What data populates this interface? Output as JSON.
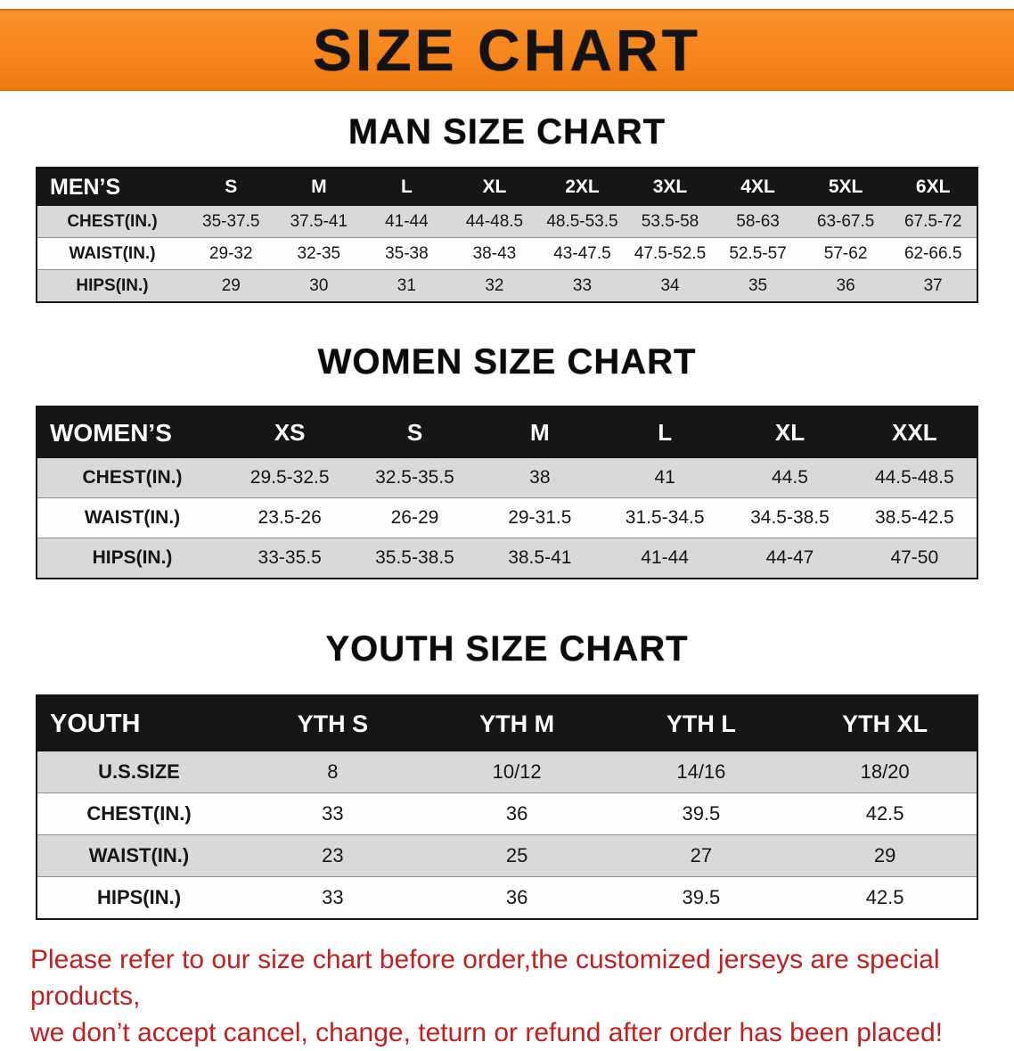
{
  "banner": {
    "title": "SIZE CHART"
  },
  "sections": [
    {
      "heading": "MAN SIZE CHART",
      "header": [
        "MEN’S",
        "S",
        "M",
        "L",
        "XL",
        "2XL",
        "3XL",
        "4XL",
        "5XL",
        "6XL"
      ],
      "rows": [
        [
          "CHEST(IN.)",
          "35-37.5",
          "37.5-41",
          "41-44",
          "44-48.5",
          "48.5-53.5",
          "53.5-58",
          "58-63",
          "63-67.5",
          "67.5-72"
        ],
        [
          "WAIST(IN.)",
          "29-32",
          "32-35",
          "35-38",
          "38-43",
          "43-47.5",
          "47.5-52.5",
          "52.5-57",
          "57-62",
          "62-66.5"
        ],
        [
          "HIPS(IN.)",
          "29",
          "30",
          "31",
          "32",
          "33",
          "34",
          "35",
          "36",
          "37"
        ]
      ]
    },
    {
      "heading": "WOMEN SIZE CHART",
      "header": [
        "WOMEN’S",
        "XS",
        "S",
        "M",
        "L",
        "XL",
        "XXL"
      ],
      "rows": [
        [
          "CHEST(IN.)",
          "29.5-32.5",
          "32.5-35.5",
          "38",
          "41",
          "44.5",
          "44.5-48.5"
        ],
        [
          "WAIST(IN.)",
          "23.5-26",
          "26-29",
          "29-31.5",
          "31.5-34.5",
          "34.5-38.5",
          "38.5-42.5"
        ],
        [
          "HIPS(IN.)",
          "33-35.5",
          "35.5-38.5",
          "38.5-41",
          "41-44",
          "44-47",
          "47-50"
        ]
      ]
    },
    {
      "heading": "YOUTH SIZE CHART",
      "header": [
        "YOUTH",
        "YTH S",
        "YTH M",
        "YTH L",
        "YTH XL"
      ],
      "rows": [
        [
          "U.S.SIZE",
          "8",
          "10/12",
          "14/16",
          "18/20"
        ],
        [
          "CHEST(IN.)",
          "33",
          "36",
          "39.5",
          "42.5"
        ],
        [
          "WAIST(IN.)",
          "23",
          "25",
          "27",
          "29"
        ],
        [
          "HIPS(IN.)",
          "33",
          "36",
          "39.5",
          "42.5"
        ]
      ]
    }
  ],
  "disclaimer": {
    "lines": [
      "Please refer to our size chart before order,the customized jerseys are special products,",
      "we don’t accept cancel, change, teturn or refund after order has been placed!"
    ]
  },
  "colors": {
    "banner_orange": "#F6861B",
    "table_header_bg": "#161616",
    "row_gray": "#D9D9D9",
    "disclaimer_red": "#C41F1F"
  }
}
